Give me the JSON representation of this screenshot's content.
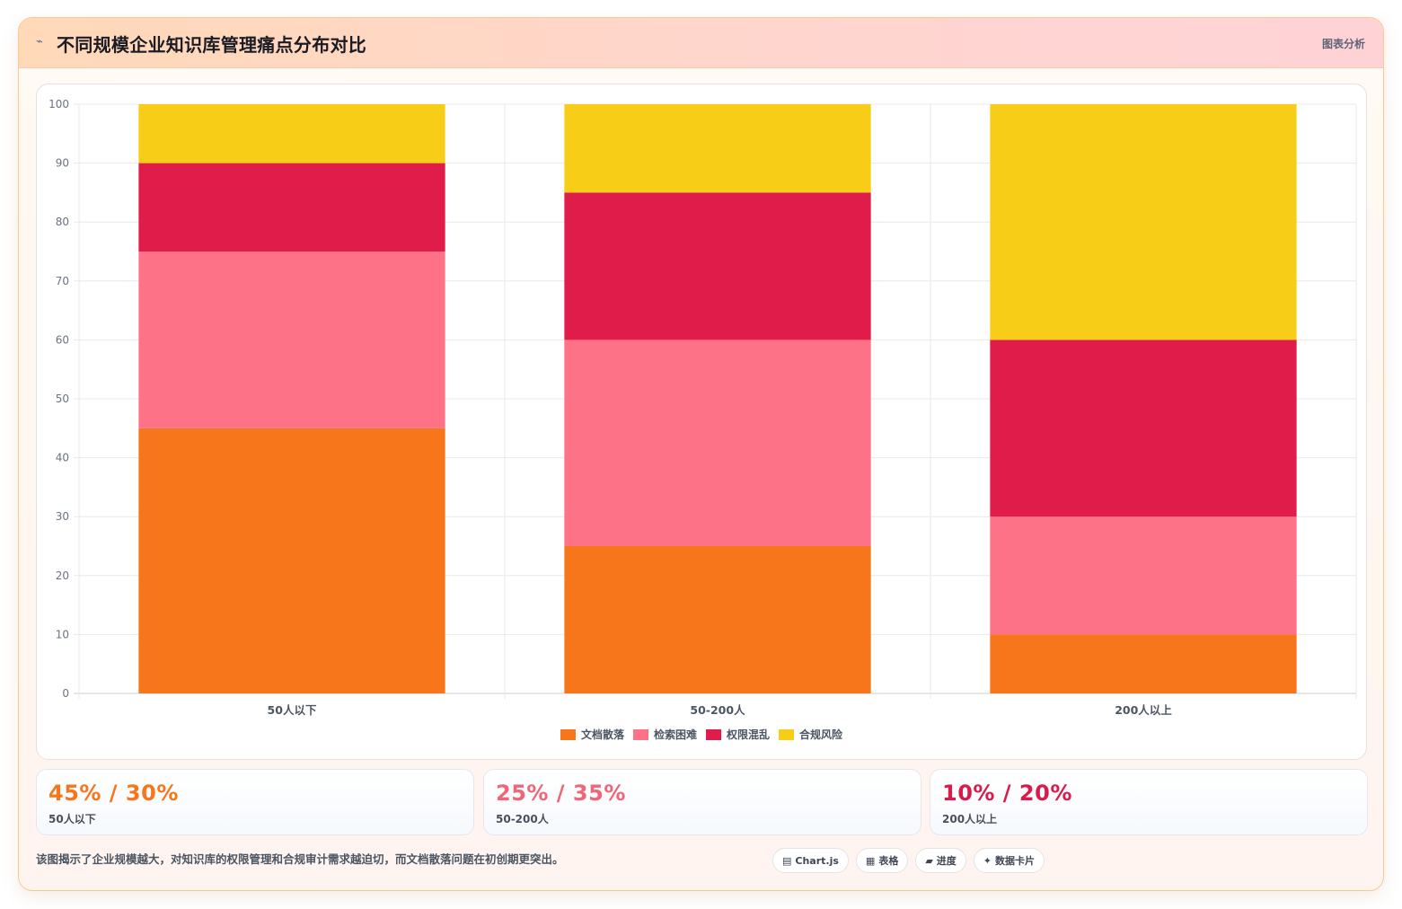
{
  "header": {
    "icon": "chart-icon",
    "title": "不同规模企业知识库管理痛点分布对比",
    "badge": "图表分析"
  },
  "chart_data": {
    "type": "bar",
    "stacked": true,
    "categories": [
      "50人以下",
      "50-200人",
      "200人以上"
    ],
    "series": [
      {
        "name": "文档散落",
        "color": "#f7751b",
        "values": [
          45,
          25,
          10
        ]
      },
      {
        "name": "检索困难",
        "color": "#fd7287",
        "values": [
          30,
          35,
          20
        ]
      },
      {
        "name": "权限混乱",
        "color": "#e01c4a",
        "values": [
          15,
          25,
          30
        ]
      },
      {
        "name": "合规风险",
        "color": "#f7cd18",
        "values": [
          10,
          15,
          40
        ]
      }
    ],
    "ylim": [
      0,
      100
    ],
    "yticks": [
      0,
      10,
      20,
      30,
      40,
      50,
      60,
      70,
      80,
      90,
      100
    ],
    "grid": true,
    "legend": "bottom-center"
  },
  "stats": [
    {
      "value": "45% / 30%",
      "label": "50人以下",
      "color": "#f7751b"
    },
    {
      "value": "25% / 35%",
      "label": "50-200人",
      "color": "#ee6678"
    },
    {
      "value": "10% / 20%",
      "label": "200人以上",
      "color": "#d81b4a"
    }
  ],
  "footer": {
    "text": "该图揭示了企业规模越大，对知识库的权限管理和合规审计需求越迫切，而文档散落问题在初创期更突出。",
    "chips": [
      {
        "icon": "chart-icon",
        "glyph": "▤",
        "label": "Chart.js"
      },
      {
        "icon": "table-icon",
        "glyph": "▦",
        "label": "表格"
      },
      {
        "icon": "progress-icon",
        "glyph": "▰",
        "label": "进度"
      },
      {
        "icon": "sparkle-icon",
        "glyph": "✦",
        "label": "数据卡片"
      }
    ]
  }
}
